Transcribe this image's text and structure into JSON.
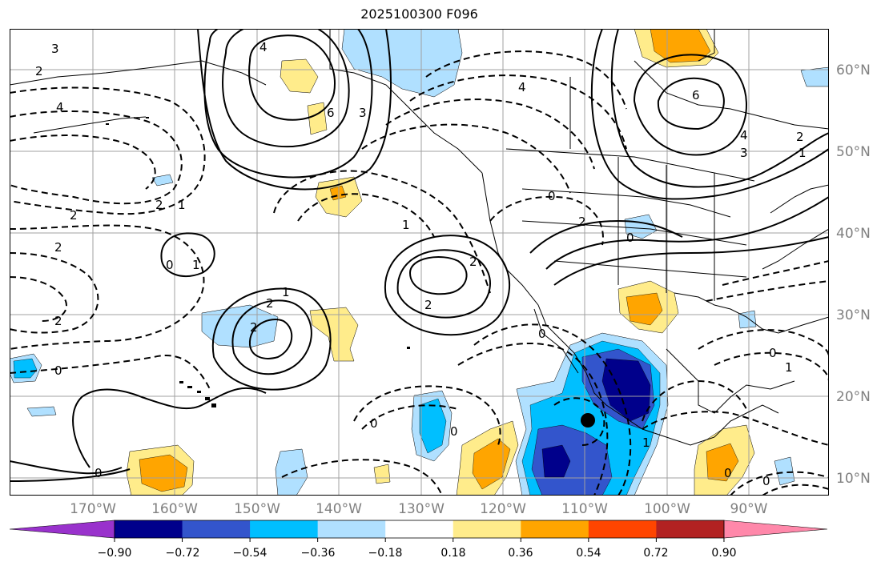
{
  "title": "2025100300 F096",
  "axes": {
    "longitude_labels": [
      "170°W",
      "160°W",
      "150°W",
      "140°W",
      "130°W",
      "120°W",
      "110°W",
      "100°W",
      "90°W"
    ],
    "latitude_labels": [
      "60°N",
      "50°N",
      "40°N",
      "30°N",
      "20°N",
      "10°N"
    ],
    "lon_range": [
      -180,
      -80
    ],
    "lat_range": [
      8,
      65
    ]
  },
  "colorbar": {
    "tick_labels": [
      "−0.90",
      "−0.72",
      "−0.54",
      "−0.36",
      "−0.18",
      "0.18",
      "0.36",
      "0.54",
      "0.72",
      "0.90"
    ],
    "colors": [
      "#9932cc",
      "#00008b",
      "#3355cc",
      "#00bfff",
      "#b0e0ff",
      "#ffffff",
      "#ffec8b",
      "#ffa500",
      "#ff4500",
      "#b22222",
      "#ff88aa"
    ]
  },
  "contour_labels": {
    "label_0": "0",
    "label_1": "1",
    "label_2": "2",
    "label_3": "3",
    "label_4": "4",
    "label_6": "6"
  },
  "colors": {
    "grid": "#a0a0a0",
    "contour": "#000000",
    "coast": "#000000",
    "axis_text": "#808080"
  }
}
